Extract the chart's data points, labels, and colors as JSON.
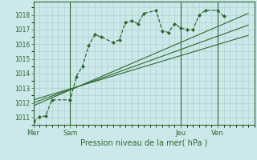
{
  "background_color": "#cce8ea",
  "grid_color": "#aacccc",
  "line_color": "#2d6a2d",
  "title": "Pression niveau de la mer( hPa )",
  "x_ticks_labels": [
    "Mer",
    "Sam",
    "Jeu",
    "Ven"
  ],
  "x_ticks_pos": [
    0,
    12,
    48,
    60
  ],
  "xlim": [
    0,
    72
  ],
  "ylim": [
    1010.5,
    1018.9
  ],
  "yticks": [
    1011,
    1012,
    1013,
    1014,
    1015,
    1016,
    1017,
    1018
  ],
  "series1_x": [
    0,
    2,
    4,
    6,
    12,
    14,
    16,
    18,
    20,
    22,
    26,
    28,
    30,
    32,
    34,
    36,
    40,
    42,
    44,
    46,
    48,
    50,
    52,
    54,
    56,
    60,
    62
  ],
  "series1_y": [
    1010.7,
    1011.05,
    1011.1,
    1012.2,
    1012.2,
    1013.8,
    1014.5,
    1015.9,
    1016.65,
    1016.5,
    1016.1,
    1016.3,
    1017.5,
    1017.6,
    1017.4,
    1018.1,
    1018.3,
    1016.9,
    1016.8,
    1017.4,
    1017.1,
    1017.0,
    1017.0,
    1018.0,
    1018.3,
    1018.3,
    1017.9
  ],
  "trend1_x": [
    0,
    70
  ],
  "trend1_y": [
    1012.0,
    1017.3
  ],
  "trend2_x": [
    0,
    70
  ],
  "trend2_y": [
    1011.8,
    1018.1
  ],
  "trend3_x": [
    0,
    70
  ],
  "trend3_y": [
    1012.2,
    1016.6
  ],
  "vlines_x": [
    12,
    48,
    60
  ]
}
